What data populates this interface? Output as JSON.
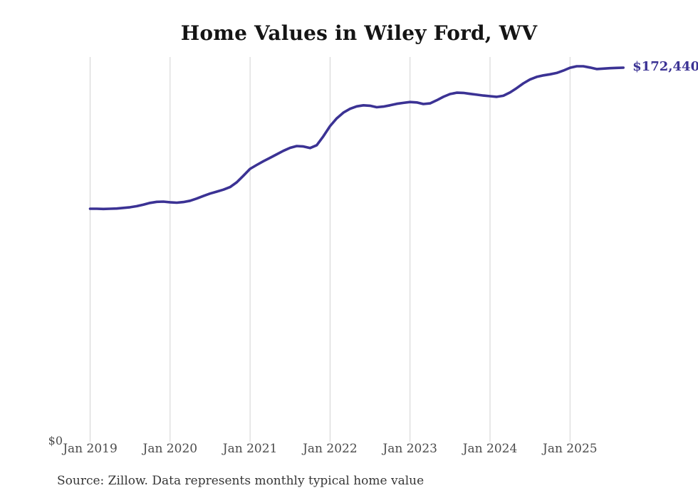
{
  "page": {
    "title": "Home Values in Wiley Ford, WV",
    "source_note": "Source: Zillow. Data represents monthly typical home value"
  },
  "chart_data": {
    "type": "line",
    "title": "Home Values in Wiley Ford, WV",
    "x_start": "Jan 2019",
    "x_end": "Sep 2025",
    "frequency": "monthly",
    "x_tick_labels": [
      "Jan 2019",
      "Jan 2020",
      "Jan 2021",
      "Jan 2022",
      "Jan 2023",
      "Jan 2024",
      "Jan 2025"
    ],
    "y_zero_label": "$0",
    "end_value_label": "$172,440",
    "end_value": 172440,
    "ylim": [
      0,
      177500
    ],
    "grid": "vertical-only",
    "legend": "none",
    "line_color": "#3b3294",
    "gridline_color": "#d2d2d2",
    "label_color": "#4c4c4c",
    "series": [
      {
        "name": "Typical home value",
        "values": [
          107400,
          107400,
          107300,
          107400,
          107500,
          107800,
          108100,
          108600,
          109300,
          110100,
          110600,
          110700,
          110400,
          110200,
          110500,
          111100,
          112100,
          113300,
          114400,
          115300,
          116200,
          117400,
          119600,
          122600,
          125800,
          127600,
          129300,
          130900,
          132500,
          134100,
          135500,
          136300,
          136100,
          135400,
          136700,
          140800,
          145500,
          149100,
          151700,
          153500,
          154600,
          155100,
          154900,
          154200,
          154500,
          155100,
          155800,
          156200,
          156600,
          156400,
          155700,
          156000,
          157400,
          159000,
          160300,
          160900,
          160800,
          160400,
          160000,
          159600,
          159300,
          159000,
          159500,
          161000,
          163000,
          165200,
          167000,
          168200,
          168900,
          169400,
          170000,
          171100,
          172400,
          173100,
          173100,
          172500,
          171800,
          172000,
          172200,
          172350,
          172440
        ]
      }
    ]
  }
}
